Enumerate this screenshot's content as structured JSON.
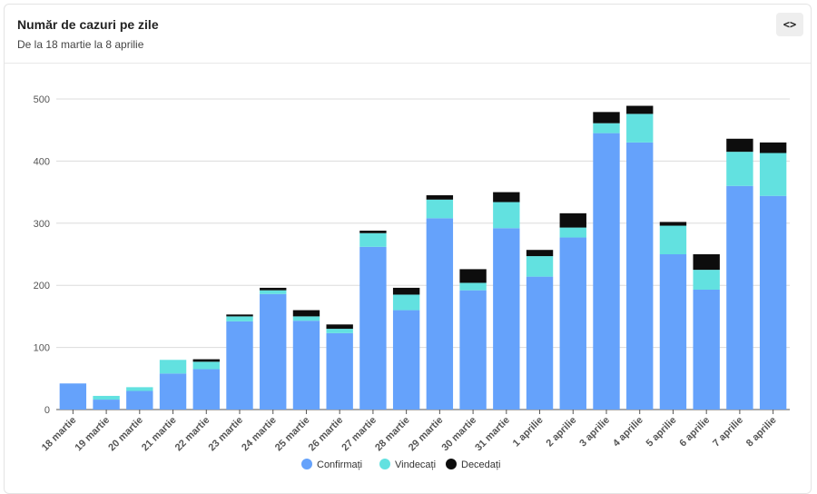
{
  "header": {
    "title": "Număr de cazuri pe zile",
    "subtitle": "De la 18 martie la 8 aprilie",
    "embed_label": "<>"
  },
  "chart_data": {
    "type": "bar",
    "stacked": true,
    "categories": [
      "18 martie",
      "19 martie",
      "20 martie",
      "21 martie",
      "22 martie",
      "23 martie",
      "24 martie",
      "25 martie",
      "26 martie",
      "27 martie",
      "28 martie",
      "29 martie",
      "30 martie",
      "31 martie",
      "1 aprilie",
      "2 aprilie",
      "3 aprilie",
      "4 aprilie",
      "5 aprilie",
      "6 aprilie",
      "7 aprilie",
      "8 aprilie"
    ],
    "series": [
      {
        "name": "Confirmați",
        "color": "#65a2fb",
        "values": [
          42,
          16,
          30,
          58,
          65,
          142,
          186,
          143,
          123,
          262,
          160,
          308,
          192,
          292,
          214,
          277,
          445,
          430,
          250,
          193,
          360,
          344
        ]
      },
      {
        "name": "Vindecați",
        "color": "#62e1e0",
        "values": [
          0,
          6,
          6,
          22,
          12,
          8,
          6,
          7,
          7,
          22,
          25,
          30,
          12,
          42,
          33,
          16,
          16,
          46,
          46,
          32,
          55,
          69
        ]
      },
      {
        "name": "Decedați",
        "color": "#0d0d0d",
        "values": [
          0,
          0,
          0,
          0,
          4,
          3,
          4,
          10,
          7,
          4,
          11,
          7,
          22,
          16,
          10,
          23,
          18,
          13,
          6,
          25,
          21,
          17
        ]
      }
    ],
    "yticks": [
      0,
      100,
      200,
      300,
      400,
      500
    ],
    "ylim": [
      0,
      500
    ],
    "grid": true,
    "legend": "bottom-center"
  }
}
